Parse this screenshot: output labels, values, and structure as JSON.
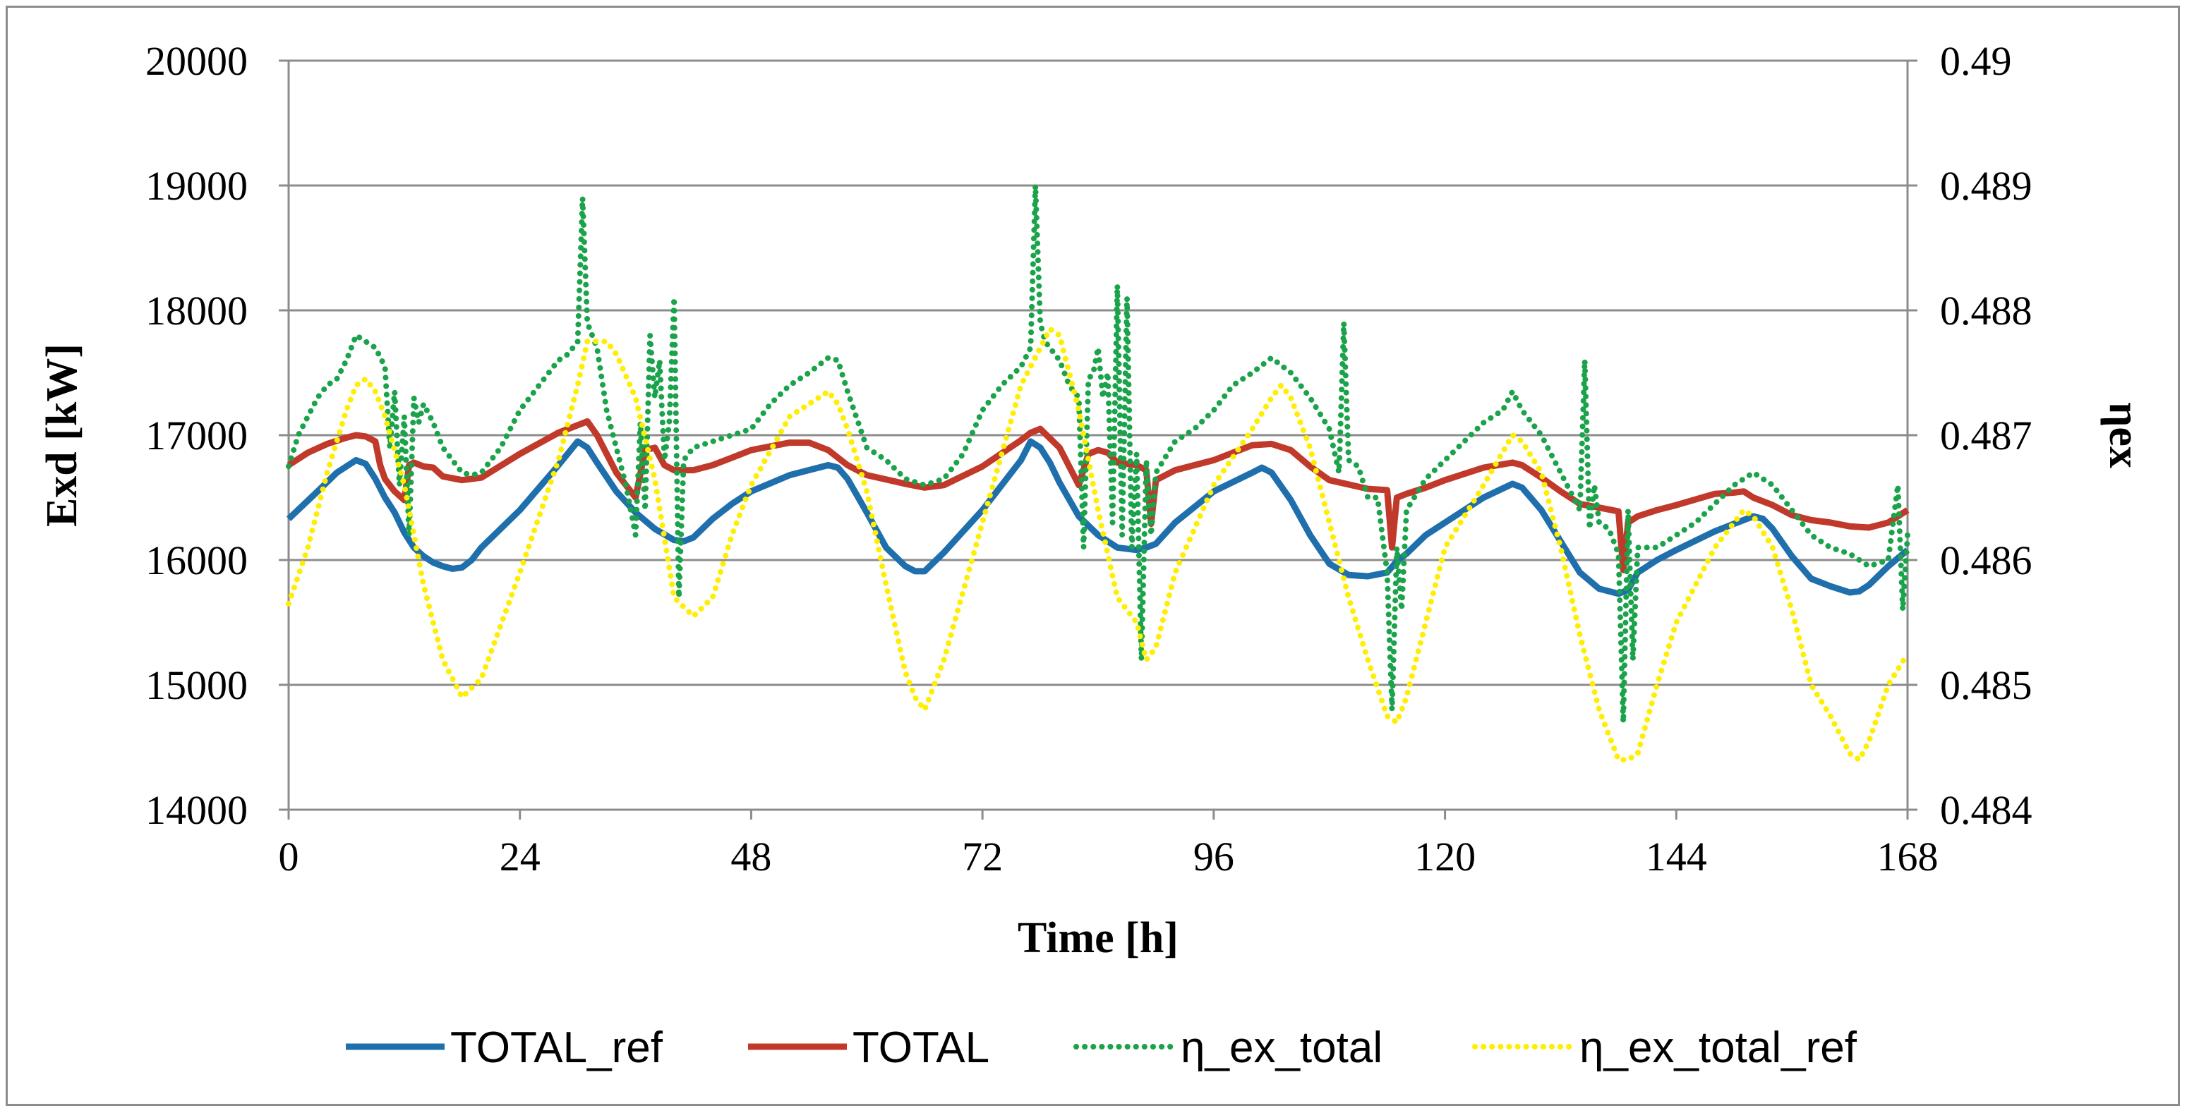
{
  "chart_data": {
    "type": "line",
    "title": "",
    "xlabel": "Time [h]",
    "ylabel": "Exd [kW]",
    "y2label": "ηex",
    "xlim": [
      0,
      168
    ],
    "ylim": [
      14000,
      20000
    ],
    "y2lim": [
      0.484,
      0.49
    ],
    "grid": true,
    "legend_position": "bottom",
    "x_ticks": [
      "0",
      "24",
      "48",
      "72",
      "96",
      "120",
      "144",
      "168"
    ],
    "y_ticks": [
      "14000",
      "15000",
      "16000",
      "17000",
      "18000",
      "19000",
      "20000"
    ],
    "y2_ticks": [
      "0.484",
      "0.485",
      "0.486",
      "0.487",
      "0.488",
      "0.489",
      "0.49"
    ],
    "series": [
      {
        "name": "TOTAL_ref",
        "axis": "left",
        "color": "#1f6fad",
        "style": "solid",
        "x": [
          0,
          3,
          5,
          7,
          8,
          9,
          10,
          11,
          12,
          13,
          14,
          15,
          16,
          17,
          18,
          19,
          20,
          24,
          28,
          30,
          31,
          32,
          34,
          36,
          38,
          40,
          41,
          42,
          44,
          46,
          48,
          52,
          56,
          57,
          58,
          60,
          62,
          64,
          65,
          66,
          68,
          72,
          76,
          77,
          78,
          79,
          80,
          82,
          84,
          86,
          88,
          89,
          90,
          92,
          96,
          100,
          101,
          102,
          104,
          106,
          108,
          110,
          112,
          114,
          115,
          116,
          118,
          120,
          124,
          127,
          128,
          130,
          132,
          134,
          136,
          138,
          139,
          140,
          142,
          144,
          148,
          152,
          153,
          154,
          156,
          158,
          160,
          162,
          163,
          164,
          166,
          168
        ],
        "values": [
          16330,
          16550,
          16700,
          16800,
          16770,
          16650,
          16500,
          16380,
          16220,
          16100,
          16030,
          15980,
          15950,
          15930,
          15940,
          16000,
          16100,
          16400,
          16760,
          16950,
          16900,
          16780,
          16550,
          16380,
          16250,
          16160,
          16150,
          16180,
          16330,
          16450,
          16550,
          16680,
          16760,
          16740,
          16650,
          16380,
          16100,
          15950,
          15910,
          15910,
          16060,
          16400,
          16800,
          16950,
          16900,
          16780,
          16620,
          16350,
          16200,
          16100,
          16080,
          16100,
          16130,
          16300,
          16550,
          16700,
          16740,
          16700,
          16480,
          16200,
          15970,
          15880,
          15870,
          15900,
          15990,
          16050,
          16200,
          16300,
          16500,
          16610,
          16580,
          16400,
          16150,
          15900,
          15770,
          15730,
          15760,
          15900,
          16000,
          16080,
          16230,
          16350,
          16330,
          16250,
          16030,
          15850,
          15790,
          15740,
          15750,
          15800,
          15950,
          16080
        ]
      },
      {
        "name": "TOTAL",
        "axis": "left",
        "color": "#c0392b",
        "style": "solid",
        "x": [
          0,
          2,
          4,
          6,
          7,
          8,
          9,
          9.5,
          10,
          11,
          12,
          12.5,
          13,
          14,
          15,
          16,
          18,
          20,
          24,
          28,
          30,
          31,
          32,
          34,
          36,
          37,
          38,
          39,
          40,
          42,
          44,
          46,
          48,
          52,
          54,
          56,
          57,
          58,
          60,
          64,
          66,
          68,
          72,
          76,
          77,
          78,
          80,
          82,
          83,
          84,
          85,
          86,
          88,
          89,
          89.5,
          90,
          92,
          96,
          100,
          102,
          104,
          106,
          108,
          112,
          114,
          114.5,
          115,
          116,
          118,
          120,
          124,
          127,
          128,
          130,
          132,
          134,
          136,
          138,
          138.5,
          139,
          140,
          142,
          144,
          148,
          150,
          151,
          152,
          154,
          156,
          158,
          160,
          162,
          164,
          166,
          168
        ],
        "values": [
          16760,
          16860,
          16930,
          16980,
          17000,
          16990,
          16950,
          16760,
          16650,
          16550,
          16480,
          16760,
          16780,
          16750,
          16740,
          16670,
          16640,
          16660,
          16850,
          17020,
          17080,
          17110,
          17000,
          16700,
          16500,
          16880,
          16900,
          16760,
          16720,
          16720,
          16760,
          16820,
          16880,
          16940,
          16940,
          16880,
          16820,
          16760,
          16680,
          16610,
          16580,
          16600,
          16750,
          16960,
          17020,
          17050,
          16900,
          16600,
          16850,
          16880,
          16860,
          16780,
          16760,
          16720,
          16290,
          16640,
          16720,
          16800,
          16920,
          16930,
          16880,
          16750,
          16640,
          16570,
          16560,
          16100,
          16500,
          16530,
          16580,
          16640,
          16740,
          16780,
          16760,
          16660,
          16550,
          16450,
          16420,
          16390,
          15920,
          16300,
          16350,
          16400,
          16440,
          16530,
          16540,
          16550,
          16500,
          16440,
          16360,
          16320,
          16300,
          16270,
          16260,
          16300,
          16400
        ]
      },
      {
        "name": "η_ex_total",
        "axis": "right",
        "color": "#1aa34a",
        "style": "dotted",
        "x": [
          0,
          1,
          2,
          3,
          4,
          5,
          6,
          7,
          8,
          9,
          10,
          10.5,
          11,
          11.5,
          12,
          12.5,
          13,
          13.5,
          14,
          15,
          16,
          17,
          18,
          19,
          20,
          22,
          24,
          26,
          28,
          29,
          30,
          30.5,
          31,
          31.5,
          32,
          33,
          34,
          35,
          36,
          36.5,
          37,
          37.5,
          38,
          38.5,
          39,
          39.5,
          40,
          40.5,
          41,
          42,
          44,
          46,
          48,
          50,
          52,
          54,
          56,
          57,
          58,
          60,
          62,
          64,
          66,
          68,
          70,
          72,
          74,
          76,
          77,
          77.5,
          78,
          78.5,
          79,
          80,
          81,
          82,
          82.5,
          83,
          83.5,
          84,
          84.5,
          85,
          85.5,
          86,
          86.5,
          87,
          87.5,
          88,
          88.5,
          89,
          89.5,
          90,
          92,
          94,
          96,
          98,
          100,
          102,
          104,
          106,
          108,
          109,
          109.5,
          110,
          111,
          112,
          113,
          114,
          114.5,
          115,
          115.5,
          116,
          118,
          120,
          122,
          124,
          126,
          127,
          128,
          130,
          132,
          134,
          134.5,
          135,
          135.5,
          136,
          137,
          138,
          138.5,
          139,
          139.5,
          140,
          142,
          144,
          146,
          148,
          150,
          152,
          154,
          156,
          158,
          160,
          162,
          164,
          166,
          167,
          167.5,
          168
        ],
        "values": [
          0.48675,
          0.487,
          0.48715,
          0.4873,
          0.4874,
          0.48745,
          0.4876,
          0.4878,
          0.48775,
          0.4877,
          0.48755,
          0.4869,
          0.48735,
          0.4866,
          0.48715,
          0.4862,
          0.4873,
          0.4871,
          0.48725,
          0.4871,
          0.4869,
          0.4868,
          0.4867,
          0.48668,
          0.4867,
          0.4869,
          0.4872,
          0.4874,
          0.4876,
          0.48765,
          0.48775,
          0.4889,
          0.4879,
          0.4878,
          0.4877,
          0.4872,
          0.4869,
          0.4866,
          0.4862,
          0.4871,
          0.4864,
          0.4878,
          0.4873,
          0.4876,
          0.4868,
          0.4871,
          0.4881,
          0.4857,
          0.4868,
          0.4869,
          0.48695,
          0.487,
          0.48705,
          0.48725,
          0.4874,
          0.4875,
          0.48762,
          0.4876,
          0.48735,
          0.4869,
          0.4868,
          0.48665,
          0.4866,
          0.48665,
          0.48685,
          0.4872,
          0.4874,
          0.48755,
          0.4877,
          0.489,
          0.4879,
          0.48775,
          0.4877,
          0.4876,
          0.4874,
          0.4873,
          0.4861,
          0.48745,
          0.4875,
          0.4877,
          0.4873,
          0.4875,
          0.4863,
          0.4882,
          0.4862,
          0.4881,
          0.4861,
          0.48685,
          0.4852,
          0.4868,
          0.4862,
          0.4867,
          0.48695,
          0.48705,
          0.4872,
          0.4874,
          0.4875,
          0.48762,
          0.4875,
          0.4873,
          0.48705,
          0.4867,
          0.4879,
          0.4868,
          0.48675,
          0.4865,
          0.4865,
          0.4859,
          0.4848,
          0.4861,
          0.4856,
          0.4864,
          0.48665,
          0.4868,
          0.48695,
          0.4871,
          0.4872,
          0.48735,
          0.4872,
          0.487,
          0.4867,
          0.4864,
          0.4876,
          0.48625,
          0.4866,
          0.4863,
          0.48625,
          0.48605,
          0.4847,
          0.4864,
          0.4852,
          0.4861,
          0.4861,
          0.4862,
          0.4863,
          0.48645,
          0.4866,
          0.4867,
          0.4866,
          0.4864,
          0.4862,
          0.4861,
          0.48605,
          0.48595,
          0.486,
          0.4866,
          0.4856,
          0.4862
        ]
      },
      {
        "name": "η_ex_total_ref",
        "axis": "right",
        "color": "#ffee00",
        "style": "dotted",
        "x": [
          0,
          2,
          4,
          6,
          7,
          8,
          9,
          10,
          12,
          14,
          16,
          18,
          20,
          24,
          28,
          30,
          31,
          32,
          33,
          34,
          36,
          38,
          40,
          42,
          44,
          46,
          48,
          52,
          55,
          56,
          57,
          58,
          60,
          62,
          64,
          65,
          66,
          68,
          72,
          76,
          78,
          79,
          80,
          82,
          84,
          86,
          88,
          89,
          90,
          92,
          96,
          100,
          102,
          103,
          104,
          106,
          108,
          110,
          112,
          114,
          115,
          116,
          118,
          120,
          124,
          127,
          128,
          130,
          132,
          134,
          136,
          138,
          139,
          140,
          142,
          144,
          148,
          151,
          152,
          154,
          156,
          158,
          160,
          162,
          163,
          164,
          166,
          168
        ],
        "values": [
          0.48565,
          0.4861,
          0.4867,
          0.4872,
          0.4874,
          0.48745,
          0.48735,
          0.48715,
          0.4866,
          0.4858,
          0.4852,
          0.4849,
          0.48505,
          0.4859,
          0.4868,
          0.4874,
          0.48775,
          0.48775,
          0.48775,
          0.48765,
          0.4873,
          0.48665,
          0.4857,
          0.48555,
          0.4857,
          0.4862,
          0.4866,
          0.48715,
          0.4873,
          0.48735,
          0.48725,
          0.48705,
          0.48655,
          0.4858,
          0.4851,
          0.4849,
          0.4848,
          0.4852,
          0.4863,
          0.4874,
          0.4877,
          0.48785,
          0.4878,
          0.4872,
          0.4864,
          0.4857,
          0.4855,
          0.4852,
          0.4853,
          0.4859,
          0.4866,
          0.48705,
          0.4873,
          0.4874,
          0.4873,
          0.4869,
          0.4863,
          0.4857,
          0.4852,
          0.48475,
          0.4847,
          0.4849,
          0.4855,
          0.4861,
          0.4866,
          0.487,
          0.48695,
          0.4867,
          0.4861,
          0.4854,
          0.4848,
          0.4844,
          0.4844,
          0.48445,
          0.485,
          0.4855,
          0.4861,
          0.4864,
          0.48635,
          0.4861,
          0.4856,
          0.485,
          0.48475,
          0.48445,
          0.4844,
          0.48455,
          0.485,
          0.48525
        ]
      }
    ]
  }
}
